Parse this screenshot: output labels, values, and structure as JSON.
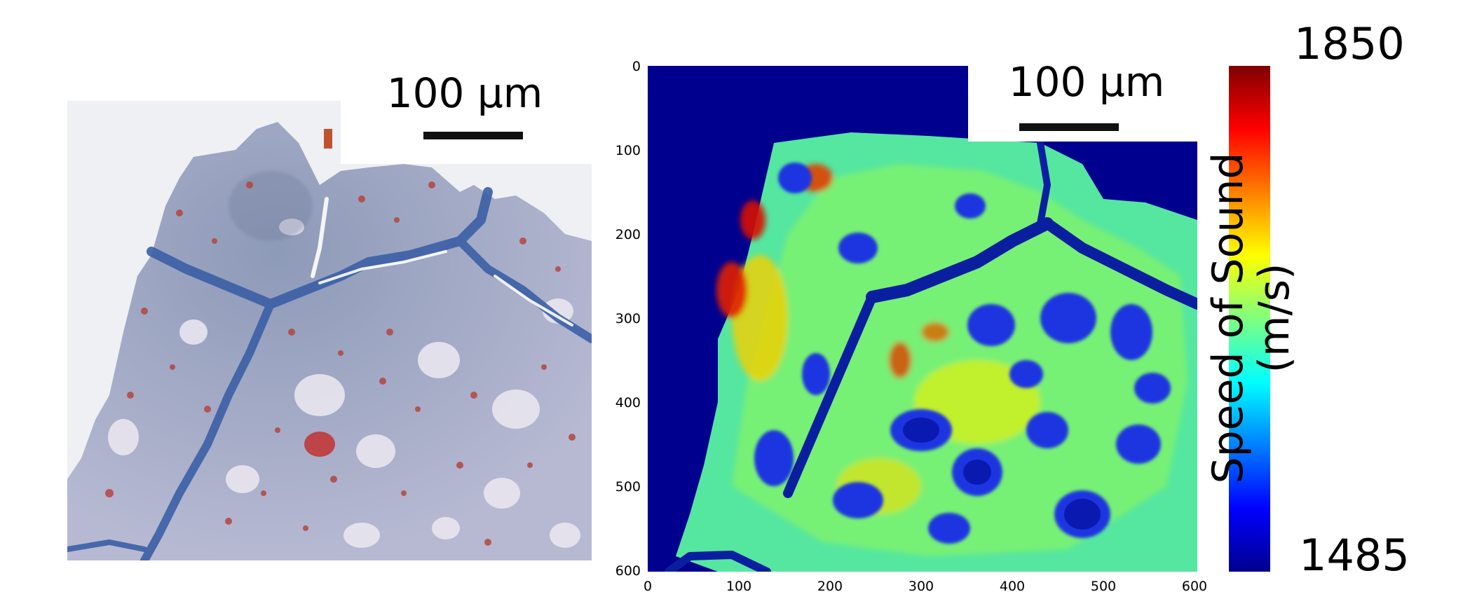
{
  "left_panel": {
    "scale_bar_label": "100 μm"
  },
  "right_panel": {
    "scale_bar_label": "100 μm",
    "y_ticks": [
      "0",
      "100",
      "200",
      "300",
      "400",
      "500",
      "600"
    ],
    "x_ticks": [
      "0",
      "100",
      "200",
      "300",
      "400",
      "500",
      "600"
    ]
  },
  "colorbar": {
    "max_label": "1850",
    "min_label": "1485",
    "title_line1": "Speed of Sound",
    "title_line2": "(m/s)",
    "colormap": "jet",
    "colors": [
      "#00008f",
      "#0000ff",
      "#00ffff",
      "#ffff00",
      "#ff0000",
      "#800000"
    ]
  },
  "chart_data": {
    "type": "heatmap",
    "colormap": "jet",
    "value_range": [
      1485,
      1850
    ],
    "xlim": [
      0,
      600
    ],
    "ylim": [
      600,
      0
    ],
    "x_ticks": [
      0,
      100,
      200,
      300,
      400,
      500,
      600
    ],
    "y_ticks": [
      0,
      100,
      200,
      300,
      400,
      500,
      600
    ],
    "colorbar_label": "Speed of Sound (m/s)"
  }
}
